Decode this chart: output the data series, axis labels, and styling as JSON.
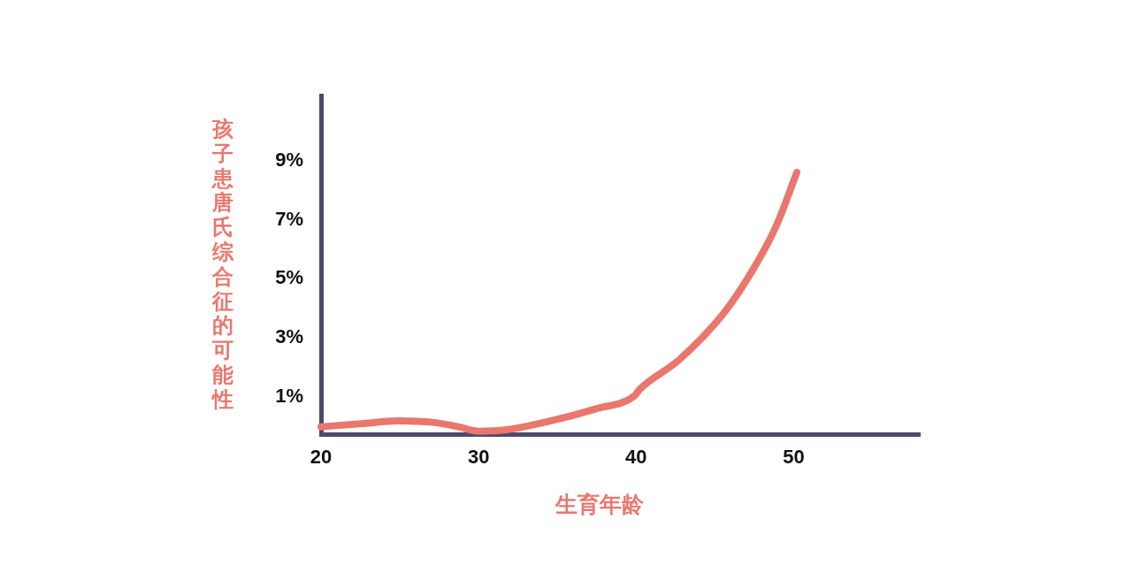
{
  "chart_data": {
    "type": "line",
    "xlabel": "生育年龄",
    "ylabel": "孩子患唐氏综合征的可能性",
    "x": [
      20,
      22.5,
      24.9,
      27.1,
      28.7,
      30,
      31.8,
      34.6,
      37.4,
      39.9,
      40.2,
      42.7,
      45.5,
      47.4,
      48.9,
      50.2
    ],
    "values": [
      0,
      0.1,
      0.2,
      0.15,
      0,
      -0.15,
      -0.1,
      0.2,
      0.6,
      1.05,
      1.25,
      2.25,
      3.8,
      5.3,
      6.8,
      8.6
    ],
    "color": "#e9776d",
    "xlim": [
      20,
      58
    ],
    "xticks": [
      20,
      30,
      40,
      50
    ],
    "ylim": [
      -0.25,
      11.2
    ],
    "yticks": [
      {
        "value": 1,
        "label": "1%"
      },
      {
        "value": 3,
        "label": "3%"
      },
      {
        "value": 5,
        "label": "5%"
      },
      {
        "value": 7,
        "label": "7%"
      },
      {
        "value": 9,
        "label": "9%"
      }
    ]
  }
}
